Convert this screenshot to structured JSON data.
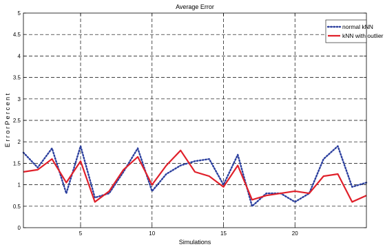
{
  "chart_data": {
    "type": "line",
    "title": "Average Error",
    "xlabel": "Simulations",
    "ylabel": "E r r o r  P e r c e n t",
    "xlim": [
      1,
      25
    ],
    "ylim": [
      0,
      5
    ],
    "xticks": [
      5,
      10,
      15,
      20
    ],
    "yticks": [
      0,
      0.5,
      1,
      1.5,
      2,
      2.5,
      3,
      3.5,
      4,
      4.5,
      5
    ],
    "grid": true,
    "legend_position": "top-right",
    "x": [
      1,
      2,
      3,
      4,
      5,
      6,
      7,
      8,
      9,
      10,
      11,
      12,
      13,
      14,
      15,
      16,
      17,
      18,
      19,
      20,
      21,
      22,
      23,
      24,
      25
    ],
    "series": [
      {
        "name": "normal kNN",
        "color": "#2b3f9e",
        "style": "dotted",
        "values": [
          1.75,
          1.4,
          1.85,
          0.8,
          1.9,
          0.7,
          0.8,
          1.3,
          1.85,
          0.85,
          1.25,
          1.45,
          1.55,
          1.6,
          1.0,
          1.7,
          0.5,
          0.8,
          0.8,
          0.6,
          0.8,
          1.6,
          1.9,
          0.95,
          1.05
        ]
      },
      {
        "name": "kNN with outlier",
        "color": "#e0202a",
        "style": "solid",
        "values": [
          1.3,
          1.35,
          1.6,
          1.05,
          1.55,
          0.6,
          0.85,
          1.35,
          1.65,
          1.0,
          1.45,
          1.8,
          1.3,
          1.2,
          0.95,
          1.45,
          0.65,
          0.75,
          0.8,
          0.85,
          0.8,
          1.2,
          1.25,
          0.6,
          0.75
        ]
      }
    ]
  }
}
